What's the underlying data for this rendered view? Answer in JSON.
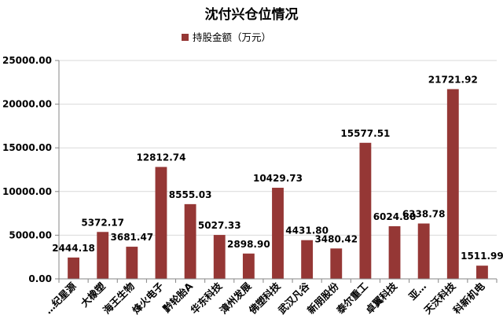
{
  "chart_data": {
    "type": "bar",
    "title": "沈付兴仓位情况",
    "legend": {
      "position": "top",
      "label": "持股金额（万元）"
    },
    "xlabel": "",
    "ylabel": "",
    "ylim": [
      0,
      25000
    ],
    "yticks": [
      0,
      5000,
      10000,
      15000,
      20000,
      25000
    ],
    "ytick_labels": [
      "0.00",
      "5000.00",
      "10000.00",
      "15000.00",
      "20000.00",
      "25000.00"
    ],
    "grid": true,
    "categories": [
      "…纪星源",
      "大橡塑",
      "海王生物",
      "烽火电子",
      "黔轮胎A",
      "华东科技",
      "漳州发展",
      "佛塑科技",
      "武汉凡谷",
      "新朋股份",
      "泰尔重工",
      "卓翼科技",
      "亚…",
      "天沃科技",
      "科新机电"
    ],
    "values": [
      2444.18,
      5372.17,
      3681.47,
      12812.74,
      8555.03,
      5027.33,
      2898.9,
      10429.73,
      4431.8,
      3480.42,
      15577.51,
      6024.8,
      6338.78,
      21721.92,
      1511.99
    ],
    "value_labels": [
      "2444.18",
      "5372.17",
      "3681.47",
      "12812.74",
      "8555.03",
      "5027.33",
      "2898.90",
      "10429.73",
      "4431.80",
      "3480.42",
      "15577.51",
      "6024.80",
      "6338.78",
      "21721.92",
      "1511.99"
    ],
    "colors": {
      "bar": "#953735"
    }
  }
}
